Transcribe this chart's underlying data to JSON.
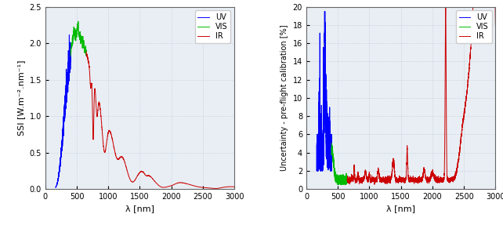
{
  "left_ylabel": "SSI [W.m⁻².nm⁻¹]",
  "right_ylabel": "Uncertainty - pre-flight calibration [%]",
  "xlabel": "λ [nm]",
  "left_xlim": [
    0,
    3000
  ],
  "left_ylim": [
    0,
    2.5
  ],
  "right_xlim": [
    0,
    3000
  ],
  "right_ylim": [
    0,
    20
  ],
  "left_xticks": [
    0,
    500,
    1000,
    1500,
    2000,
    2500,
    3000
  ],
  "right_xticks": [
    0,
    500,
    1000,
    1500,
    2000,
    2500,
    3000
  ],
  "left_yticks": [
    0,
    0.5,
    1.0,
    1.5,
    2.0,
    2.5
  ],
  "right_yticks": [
    0,
    2,
    4,
    6,
    8,
    10,
    12,
    14,
    16,
    18,
    20
  ],
  "uv_color": "#0000ff",
  "vis_color": "#00bb00",
  "ir_color": "#cc0000",
  "grid_color": "#b8c4cc",
  "bg_color": "#e8eef4",
  "legend_fontsize": 7,
  "tick_fontsize": 7,
  "label_fontsize": 8
}
